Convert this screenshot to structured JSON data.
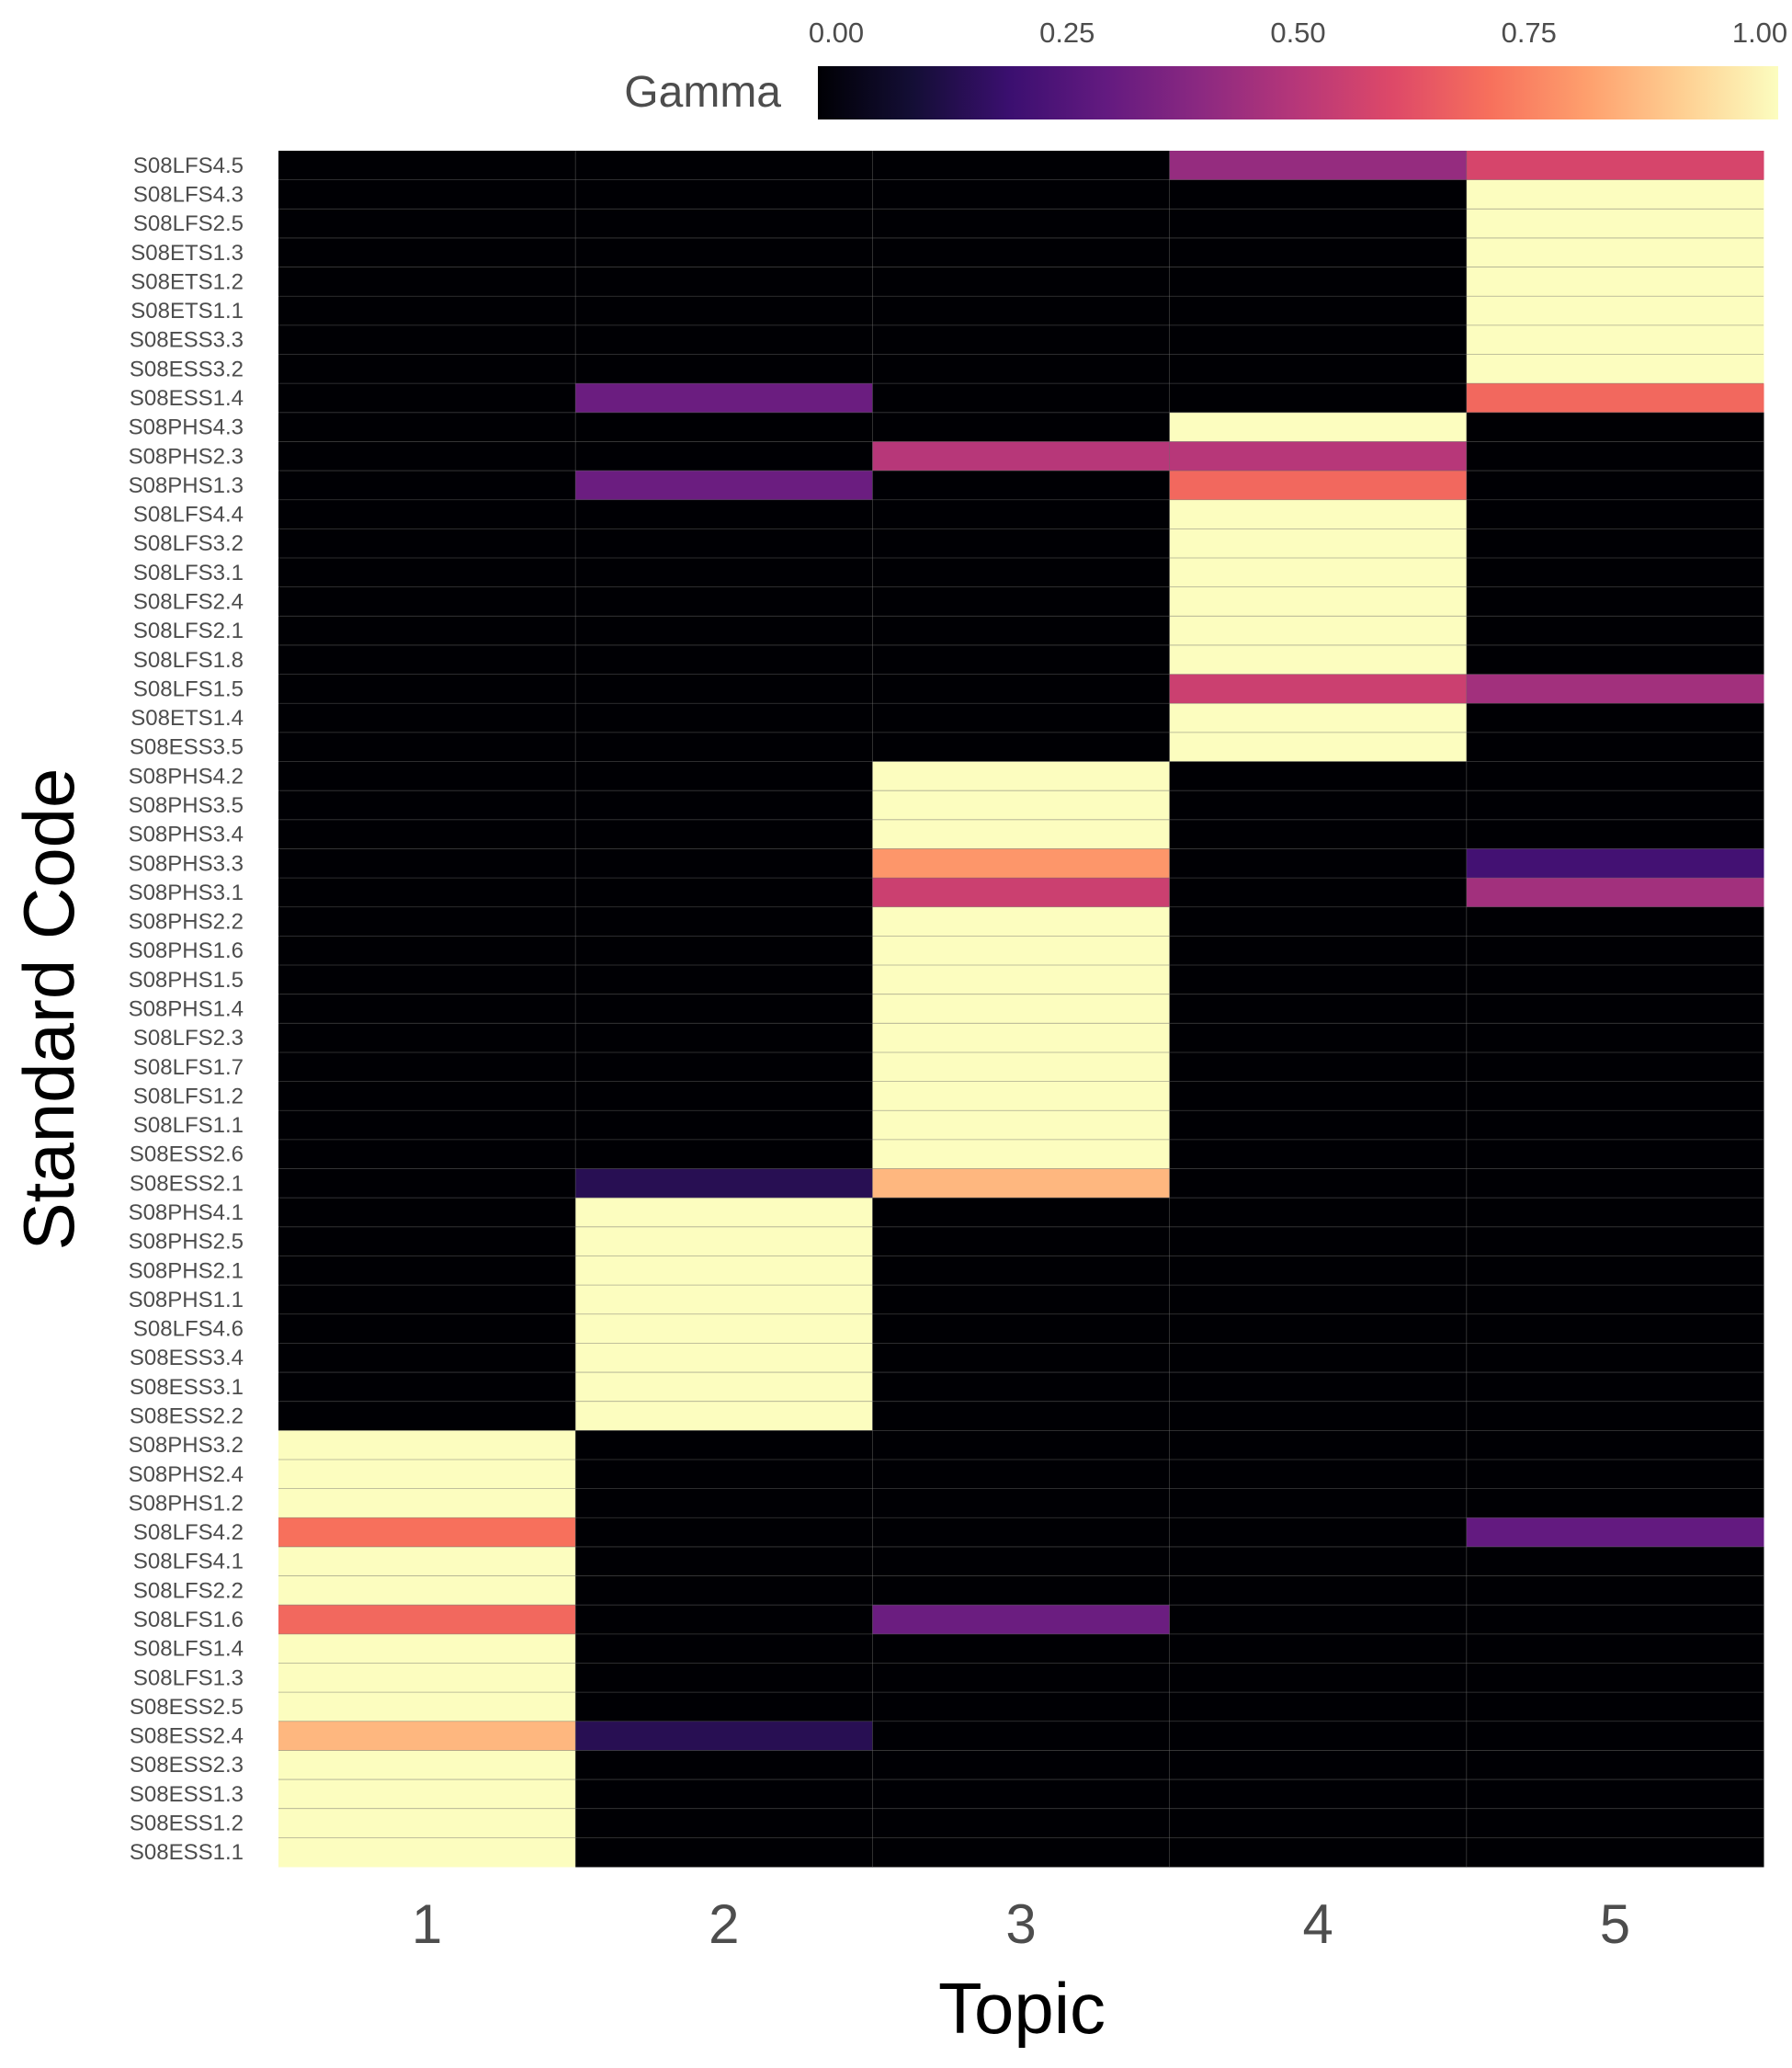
{
  "chart_data": {
    "type": "heatmap",
    "title": "",
    "xlabel": "Topic",
    "ylabel": "Standard Code",
    "legend": {
      "title": "Gamma",
      "ticks": [
        "0.00",
        "0.25",
        "0.50",
        "0.75",
        "1.00"
      ],
      "range": [
        0,
        1
      ],
      "placement": "top-right",
      "colormap": "magma"
    },
    "columns": [
      "1",
      "2",
      "3",
      "4",
      "5"
    ],
    "rows": [
      {
        "code": "S08LFS4.5",
        "values": [
          0,
          0,
          0,
          0.42,
          0.58
        ]
      },
      {
        "code": "S08LFS4.3",
        "values": [
          0,
          0,
          0,
          0,
          1
        ]
      },
      {
        "code": "S08LFS2.5",
        "values": [
          0,
          0,
          0,
          0,
          1
        ]
      },
      {
        "code": "S08ETS1.3",
        "values": [
          0,
          0,
          0,
          0,
          1
        ]
      },
      {
        "code": "S08ETS1.2",
        "values": [
          0,
          0,
          0,
          0,
          1
        ]
      },
      {
        "code": "S08ETS1.1",
        "values": [
          0,
          0,
          0,
          0,
          1
        ]
      },
      {
        "code": "S08ESS3.3",
        "values": [
          0,
          0,
          0,
          0,
          1
        ]
      },
      {
        "code": "S08ESS3.2",
        "values": [
          0,
          0,
          0,
          0,
          1
        ]
      },
      {
        "code": "S08ESS1.4",
        "values": [
          0,
          0.32,
          0,
          0,
          0.68
        ]
      },
      {
        "code": "S08PHS4.3",
        "values": [
          0,
          0,
          0,
          1,
          0
        ]
      },
      {
        "code": "S08PHS2.3",
        "values": [
          0,
          0,
          0.5,
          0.5,
          0
        ]
      },
      {
        "code": "S08PHS1.3",
        "values": [
          0,
          0.32,
          0,
          0.68,
          0
        ]
      },
      {
        "code": "S08LFS4.4",
        "values": [
          0,
          0,
          0,
          1,
          0
        ]
      },
      {
        "code": "S08LFS3.2",
        "values": [
          0,
          0,
          0,
          1,
          0
        ]
      },
      {
        "code": "S08LFS3.1",
        "values": [
          0,
          0,
          0,
          1,
          0
        ]
      },
      {
        "code": "S08LFS2.4",
        "values": [
          0,
          0,
          0,
          1,
          0
        ]
      },
      {
        "code": "S08LFS2.1",
        "values": [
          0,
          0,
          0,
          1,
          0
        ]
      },
      {
        "code": "S08LFS1.8",
        "values": [
          0,
          0,
          0,
          1,
          0
        ]
      },
      {
        "code": "S08LFS1.5",
        "values": [
          0,
          0,
          0,
          0.55,
          0.45
        ]
      },
      {
        "code": "S08ETS1.4",
        "values": [
          0,
          0,
          0,
          1,
          0
        ]
      },
      {
        "code": "S08ESS3.5",
        "values": [
          0,
          0,
          0,
          1,
          0
        ]
      },
      {
        "code": "S08PHS4.2",
        "values": [
          0,
          0,
          1,
          0,
          0
        ]
      },
      {
        "code": "S08PHS3.5",
        "values": [
          0,
          0,
          1,
          0,
          0
        ]
      },
      {
        "code": "S08PHS3.4",
        "values": [
          0,
          0,
          1,
          0,
          0
        ]
      },
      {
        "code": "S08PHS3.3",
        "values": [
          0,
          0,
          0.78,
          0,
          0.22
        ]
      },
      {
        "code": "S08PHS3.1",
        "values": [
          0,
          0,
          0.55,
          0,
          0.45
        ]
      },
      {
        "code": "S08PHS2.2",
        "values": [
          0,
          0,
          1,
          0,
          0
        ]
      },
      {
        "code": "S08PHS1.6",
        "values": [
          0,
          0,
          1,
          0,
          0
        ]
      },
      {
        "code": "S08PHS1.5",
        "values": [
          0,
          0,
          1,
          0,
          0
        ]
      },
      {
        "code": "S08PHS1.4",
        "values": [
          0,
          0,
          1,
          0,
          0
        ]
      },
      {
        "code": "S08LFS2.3",
        "values": [
          0,
          0,
          1,
          0,
          0
        ]
      },
      {
        "code": "S08LFS1.7",
        "values": [
          0,
          0,
          1,
          0,
          0
        ]
      },
      {
        "code": "S08LFS1.2",
        "values": [
          0,
          0,
          1,
          0,
          0
        ]
      },
      {
        "code": "S08LFS1.1",
        "values": [
          0,
          0,
          1,
          0,
          0
        ]
      },
      {
        "code": "S08ESS2.6",
        "values": [
          0,
          0,
          1,
          0,
          0
        ]
      },
      {
        "code": "S08ESS2.1",
        "values": [
          0,
          0.15,
          0.85,
          0,
          0
        ]
      },
      {
        "code": "S08PHS4.1",
        "values": [
          0,
          1,
          0,
          0,
          0
        ]
      },
      {
        "code": "S08PHS2.5",
        "values": [
          0,
          1,
          0,
          0,
          0
        ]
      },
      {
        "code": "S08PHS2.1",
        "values": [
          0,
          1,
          0,
          0,
          0
        ]
      },
      {
        "code": "S08PHS1.1",
        "values": [
          0,
          1,
          0,
          0,
          0
        ]
      },
      {
        "code": "S08LFS4.6",
        "values": [
          0,
          1,
          0,
          0,
          0
        ]
      },
      {
        "code": "S08ESS3.4",
        "values": [
          0,
          1,
          0,
          0,
          0
        ]
      },
      {
        "code": "S08ESS3.1",
        "values": [
          0,
          1,
          0,
          0,
          0
        ]
      },
      {
        "code": "S08ESS2.2",
        "values": [
          0,
          1,
          0,
          0,
          0
        ]
      },
      {
        "code": "S08PHS3.2",
        "values": [
          1,
          0,
          0,
          0,
          0
        ]
      },
      {
        "code": "S08PHS2.4",
        "values": [
          1,
          0,
          0,
          0,
          0
        ]
      },
      {
        "code": "S08PHS1.2",
        "values": [
          1,
          0,
          0,
          0,
          0
        ]
      },
      {
        "code": "S08LFS4.2",
        "values": [
          0.7,
          0,
          0,
          0,
          0.3
        ]
      },
      {
        "code": "S08LFS4.1",
        "values": [
          1,
          0,
          0,
          0,
          0
        ]
      },
      {
        "code": "S08LFS2.2",
        "values": [
          1,
          0,
          0,
          0,
          0
        ]
      },
      {
        "code": "S08LFS1.6",
        "values": [
          0.68,
          0,
          0.32,
          0,
          0
        ]
      },
      {
        "code": "S08LFS1.4",
        "values": [
          1,
          0,
          0,
          0,
          0
        ]
      },
      {
        "code": "S08LFS1.3",
        "values": [
          1,
          0,
          0,
          0,
          0
        ]
      },
      {
        "code": "S08ESS2.5",
        "values": [
          1,
          0,
          0,
          0,
          0
        ]
      },
      {
        "code": "S08ESS2.4",
        "values": [
          0.85,
          0.15,
          0,
          0,
          0
        ]
      },
      {
        "code": "S08ESS2.3",
        "values": [
          1,
          0,
          0,
          0,
          0
        ]
      },
      {
        "code": "S08ESS1.3",
        "values": [
          1,
          0,
          0,
          0,
          0
        ]
      },
      {
        "code": "S08ESS1.2",
        "values": [
          1,
          0,
          0,
          0,
          0
        ]
      },
      {
        "code": "S08ESS1.1",
        "values": [
          1,
          0,
          0,
          0,
          0
        ]
      }
    ]
  }
}
